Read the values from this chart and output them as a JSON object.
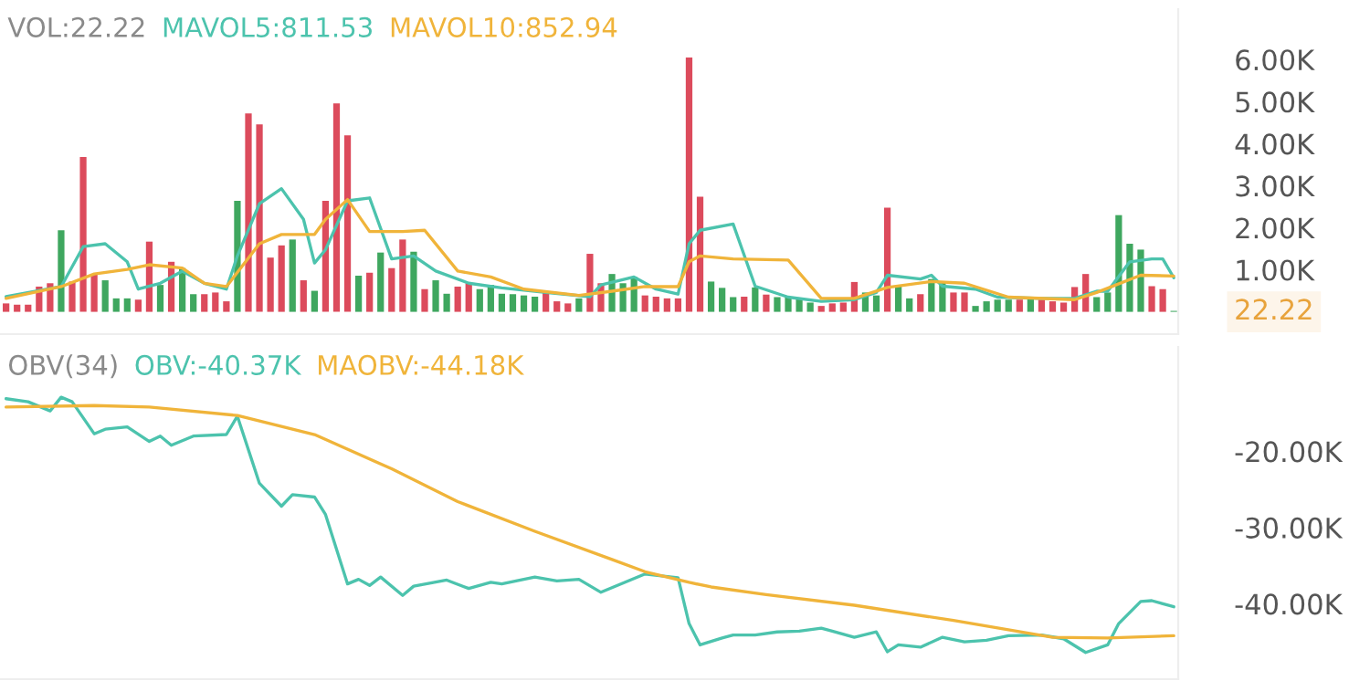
{
  "chart_data": [
    {
      "type": "bar",
      "title": "VOL:22.22",
      "legend": "top left",
      "tick_labels": "y",
      "categories": [
        null,
        null,
        null,
        null,
        null,
        null,
        null,
        null,
        null,
        null,
        null,
        null,
        null,
        null,
        null,
        null,
        null,
        null,
        null,
        null,
        null,
        null,
        null,
        null,
        null,
        null,
        null,
        null,
        null,
        null,
        null,
        null,
        null,
        null,
        null,
        null,
        null,
        null,
        null,
        null,
        null,
        null,
        null,
        null,
        null,
        null,
        null,
        null,
        null,
        null,
        null,
        null,
        null,
        null,
        null,
        null,
        null,
        null,
        null,
        null,
        null,
        null,
        null,
        null,
        null,
        null,
        null,
        null,
        null,
        null,
        null,
        null,
        null,
        null,
        null,
        null,
        null,
        null,
        null,
        null,
        null,
        null,
        null,
        null,
        null,
        null,
        null,
        null,
        null,
        null,
        null,
        null,
        null,
        null,
        null,
        null,
        null,
        null,
        null,
        null,
        null,
        null,
        null,
        null,
        null,
        null,
        null
      ],
      "ylim": [
        -530,
        7200
      ],
      "yticks": [
        {
          "value": 1000,
          "label": "1.00K"
        },
        {
          "value": 2000,
          "label": "2.00K"
        },
        {
          "value": 3000,
          "label": "3.00K"
        },
        {
          "value": 4000,
          "label": "4.00K"
        },
        {
          "value": 5000,
          "label": "5.00K"
        },
        {
          "value": 6000,
          "label": "6.00K"
        }
      ],
      "annotations": [
        "22.22"
      ],
      "series": [
        {
          "type": "bar",
          "values": [
            200,
            170,
            170,
            600,
            680,
            1940,
            720,
            3680,
            900,
            750,
            320,
            320,
            290,
            1670,
            640,
            1190,
            1040,
            420,
            420,
            460,
            250,
            2640,
            4720,
            4460,
            1290,
            1580,
            1720,
            750,
            500,
            2640,
            4960,
            4200,
            860,
            930,
            1410,
            1040,
            1720,
            1430,
            540,
            750,
            430,
            600,
            680,
            540,
            640,
            430,
            420,
            390,
            360,
            460,
            250,
            200,
            320,
            1380,
            680,
            900,
            680,
            830,
            390,
            360,
            320,
            320,
            6050,
            2740,
            720,
            570,
            350,
            360,
            580,
            410,
            350,
            350,
            320,
            220,
            140,
            200,
            220,
            710,
            460,
            390,
            2480,
            610,
            320,
            420,
            780,
            720,
            460,
            460,
            140,
            250,
            290,
            290,
            290,
            320,
            290,
            250,
            220,
            590,
            900,
            350,
            460,
            2300,
            1620,
            1480,
            610,
            540,
            22.22
          ],
          "colors": [
            "#dc4b5c",
            "#dc4b5c",
            "#dc4b5c",
            "#dc4b5c",
            "#dc4b5c",
            "#3fa75f",
            "#dc4b5c",
            "#dc4b5c",
            "#dc4b5c",
            "#3fa75f",
            "#3fa75f",
            "#3fa75f",
            "#dc4b5c",
            "#dc4b5c",
            "#3fa75f",
            "#dc4b5c",
            "#3fa75f",
            "#3fa75f",
            "#dc4b5c",
            "#dc4b5c",
            "#dc4b5c",
            "#3fa75f",
            "#dc4b5c",
            "#dc4b5c",
            "#dc4b5c",
            "#dc4b5c",
            "#3fa75f",
            "#dc4b5c",
            "#3fa75f",
            "#dc4b5c",
            "#dc4b5c",
            "#dc4b5c",
            "#3fa75f",
            "#dc4b5c",
            "#3fa75f",
            "#dc4b5c",
            "#dc4b5c",
            "#3fa75f",
            "#dc4b5c",
            "#3fa75f",
            "#3fa75f",
            "#dc4b5c",
            "#dc4b5c",
            "#3fa75f",
            "#3fa75f",
            "#3fa75f",
            "#3fa75f",
            "#3fa75f",
            "#3fa75f",
            "#dc4b5c",
            "#dc4b5c",
            "#dc4b5c",
            "#3fa75f",
            "#dc4b5c",
            "#dc4b5c",
            "#3fa75f",
            "#3fa75f",
            "#3fa75f",
            "#dc4b5c",
            "#dc4b5c",
            "#dc4b5c",
            "#dc4b5c",
            "#dc4b5c",
            "#dc4b5c",
            "#3fa75f",
            "#3fa75f",
            "#3fa75f",
            "#dc4b5c",
            "#3fa75f",
            "#dc4b5c",
            "#3fa75f",
            "#3fa75f",
            "#3fa75f",
            "#3fa75f",
            "#dc4b5c",
            "#dc4b5c",
            "#dc4b5c",
            "#dc4b5c",
            "#3fa75f",
            "#3fa75f",
            "#dc4b5c",
            "#3fa75f",
            "#3fa75f",
            "#dc4b5c",
            "#3fa75f",
            "#3fa75f",
            "#dc4b5c",
            "#dc4b5c",
            "#3fa75f",
            "#3fa75f",
            "#3fa75f",
            "#3fa75f",
            "#dc4b5c",
            "#3fa75f",
            "#dc4b5c",
            "#dc4b5c",
            "#dc4b5c",
            "#dc4b5c",
            "#dc4b5c",
            "#3fa75f",
            "#3fa75f",
            "#3fa75f",
            "#3fa75f",
            "#3fa75f",
            "#dc4b5c",
            "#dc4b5c",
            "#3fa75f"
          ]
        },
        {
          "name": "MAVOL5:811.53",
          "type": "line",
          "color": "#4cc3ad",
          "values": [
            360,
            null,
            null,
            null,
            null,
            600,
            null,
            1550,
            null,
            1620,
            null,
            1190,
            540,
            null,
            680,
            null,
            970,
            null,
            680,
            null,
            540,
            1330,
            null,
            2570,
            null,
            2930,
            null,
            2200,
            1160,
            1480,
            null,
            2640,
            null,
            2710,
            null,
            1260,
            null,
            1330,
            null,
            970,
            null,
            null,
            680,
            null,
            null,
            570,
            null,
            null,
            null,
            460,
            null,
            null,
            null,
            360,
            640,
            null,
            null,
            830,
            null,
            540,
            null,
            420,
            1620,
            1940,
            null,
            null,
            2090,
            null,
            610,
            null,
            null,
            350,
            null,
            null,
            250,
            null,
            null,
            290,
            null,
            460,
            870,
            null,
            null,
            780,
            870,
            610,
            null,
            null,
            540,
            null,
            350,
            null,
            null,
            null,
            320,
            null,
            null,
            320,
            null,
            490,
            490,
            null,
            1190,
            null,
            1260,
            1260,
            811.53
          ]
        },
        {
          "name": "MAVOL10:852.94",
          "type": "line",
          "color": "#f0b43a",
          "values": [
            320,
            null,
            null,
            null,
            null,
            600,
            null,
            null,
            900,
            null,
            null,
            1010,
            null,
            1120,
            null,
            null,
            1040,
            null,
            680,
            null,
            600,
            null,
            null,
            1620,
            null,
            1840,
            null,
            null,
            1840,
            2200,
            null,
            2670,
            null,
            1910,
            null,
            null,
            1910,
            null,
            1940,
            null,
            null,
            970,
            null,
            null,
            830,
            null,
            null,
            540,
            null,
            null,
            null,
            null,
            390,
            null,
            null,
            490,
            null,
            null,
            600,
            null,
            null,
            600,
            1190,
            1330,
            null,
            null,
            1260,
            null,
            null,
            null,
            null,
            1230,
            null,
            null,
            320,
            null,
            null,
            320,
            null,
            null,
            580,
            null,
            null,
            null,
            720,
            null,
            null,
            680,
            null,
            null,
            null,
            350,
            null,
            null,
            null,
            null,
            null,
            290,
            null,
            460,
            null,
            null,
            null,
            870,
            null,
            null,
            852.94
          ]
        }
      ]
    },
    {
      "type": "line",
      "title": "OBV(34)",
      "legend": "top left",
      "tick_labels": "y",
      "categories": [
        null,
        null,
        null,
        null,
        null,
        null,
        null,
        null,
        null,
        null,
        null,
        null,
        null,
        null,
        null,
        null,
        null,
        null,
        null,
        null,
        null,
        null,
        null,
        null,
        null,
        null,
        null,
        null,
        null,
        null,
        null,
        null,
        null,
        null,
        null,
        null,
        null,
        null,
        null,
        null,
        null,
        null,
        null,
        null,
        null,
        null,
        null,
        null,
        null,
        null,
        null,
        null,
        null,
        null,
        null,
        null,
        null,
        null,
        null,
        null,
        null,
        null,
        null,
        null,
        null,
        null,
        null,
        null,
        null,
        null,
        null,
        null,
        null,
        null,
        null,
        null,
        null,
        null,
        null,
        null,
        null,
        null,
        null,
        null,
        null,
        null,
        null,
        null,
        null,
        null,
        null,
        null,
        null,
        null,
        null,
        null,
        null,
        null,
        null,
        null,
        null,
        null,
        null,
        null,
        null,
        null,
        null
      ],
      "ylim": [
        -49900,
        -6300
      ],
      "yticks": [
        {
          "value": -40000,
          "label": "-40.00K"
        },
        {
          "value": -30000,
          "label": "-30.00K"
        },
        {
          "value": -20000,
          "label": "-20.00K"
        }
      ],
      "series": [
        {
          "name": "OBV:-40.37K",
          "color": "#4cc3ad",
          "values": [
            -13100,
            null,
            -13500,
            null,
            -14700,
            -12900,
            -13500,
            null,
            -17700,
            -17100,
            null,
            -16800,
            null,
            -18700,
            -18000,
            -19200,
            null,
            -18000,
            null,
            null,
            -17800,
            -15400,
            null,
            -24200,
            null,
            -27200,
            -25700,
            null,
            -26000,
            -28300,
            null,
            -37400,
            -36800,
            -37600,
            -36500,
            null,
            -38900,
            -37700,
            null,
            null,
            -36900,
            null,
            -38000,
            null,
            -37200,
            -37400,
            null,
            null,
            -36500,
            null,
            -37000,
            null,
            -36800,
            null,
            -38500,
            null,
            null,
            null,
            -36100,
            null,
            null,
            -36600,
            -42600,
            -45400,
            null,
            -44500,
            -44100,
            null,
            -44100,
            null,
            -43700,
            null,
            -43600,
            null,
            -43200,
            -43600,
            null,
            -44400,
            null,
            -43700,
            -46300,
            -45400,
            null,
            -45700,
            null,
            -44400,
            null,
            -45000,
            null,
            -44800,
            null,
            -44200,
            null,
            null,
            -44100,
            null,
            -44600,
            null,
            -46400,
            null,
            -45400,
            -42600,
            null,
            -39700,
            -39600,
            null,
            -40400
          ]
        },
        {
          "name": "MAOBV:-44.18K",
          "color": "#f0b43a",
          "values": [
            -14200,
            null,
            null,
            null,
            null,
            null,
            null,
            null,
            -14000,
            null,
            null,
            null,
            null,
            -14200,
            null,
            null,
            null,
            null,
            null,
            null,
            null,
            -15300,
            null,
            null,
            null,
            null,
            null,
            null,
            -17800,
            null,
            null,
            null,
            null,
            null,
            null,
            -22300,
            null,
            null,
            null,
            null,
            null,
            -26600,
            null,
            null,
            null,
            null,
            null,
            null,
            -30500,
            null,
            null,
            null,
            null,
            null,
            null,
            -34200,
            null,
            null,
            -35800,
            null,
            null,
            null,
            -37200,
            null,
            -37800,
            null,
            null,
            null,
            null,
            -38800,
            null,
            null,
            null,
            null,
            null,
            null,
            null,
            -40200,
            null,
            null,
            null,
            null,
            null,
            null,
            null,
            null,
            -42200,
            null,
            null,
            null,
            null,
            null,
            null,
            null,
            null,
            -44400,
            null,
            null,
            null,
            null,
            -44500,
            null,
            null,
            null,
            null,
            null,
            -44200
          ]
        }
      ]
    }
  ]
}
